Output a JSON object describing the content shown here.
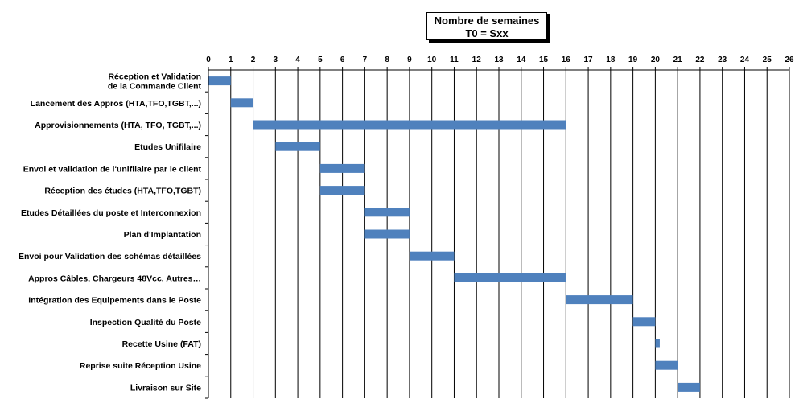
{
  "chart_data": {
    "type": "gantt",
    "title": [
      "Nombre de semaines",
      "T0 = Sxx"
    ],
    "x_ticks": [
      0,
      1,
      2,
      3,
      4,
      5,
      6,
      7,
      8,
      9,
      10,
      11,
      12,
      13,
      14,
      15,
      16,
      17,
      18,
      19,
      20,
      21,
      22,
      23,
      24,
      25,
      26
    ],
    "xlim": [
      0,
      26
    ],
    "bar_color": "#4f81bd",
    "tasks": [
      {
        "label": [
          "Réception et Validation",
          "de la Commande Client"
        ],
        "start": 0,
        "end": 1
      },
      {
        "label": [
          "Lancement des Appros (HTA,TFO,TGBT,...)"
        ],
        "start": 1,
        "end": 2
      },
      {
        "label": [
          "Approvisionnements (HTA, TFO, TGBT,...)"
        ],
        "start": 2,
        "end": 16
      },
      {
        "label": [
          "Etudes Unifilaire"
        ],
        "start": 3,
        "end": 5
      },
      {
        "label": [
          "Envoi et validation de l'unifilaire par le client"
        ],
        "start": 5,
        "end": 7
      },
      {
        "label": [
          "Réception des études (HTA,TFO,TGBT)"
        ],
        "start": 5,
        "end": 7
      },
      {
        "label": [
          "Etudes Détaillées du poste et Interconnexion"
        ],
        "start": 7,
        "end": 9
      },
      {
        "label": [
          "Plan d'Implantation"
        ],
        "start": 7,
        "end": 9
      },
      {
        "label": [
          "Envoi pour Validation des schémas détaillées"
        ],
        "start": 9,
        "end": 11
      },
      {
        "label": [
          "Appros Câbles, Chargeurs 48Vcc, Autres…"
        ],
        "start": 11,
        "end": 16
      },
      {
        "label": [
          "Intégration des Equipements dans le Poste"
        ],
        "start": 16,
        "end": 19
      },
      {
        "label": [
          "Inspection Qualité du Poste"
        ],
        "start": 19,
        "end": 20
      },
      {
        "label": [
          "Recette Usine (FAT)"
        ],
        "start": 20,
        "end": 20.2
      },
      {
        "label": [
          "Reprise suite Réception Usine"
        ],
        "start": 20,
        "end": 21
      },
      {
        "label": [
          "Livraison sur Site"
        ],
        "start": 21,
        "end": 22
      }
    ]
  }
}
